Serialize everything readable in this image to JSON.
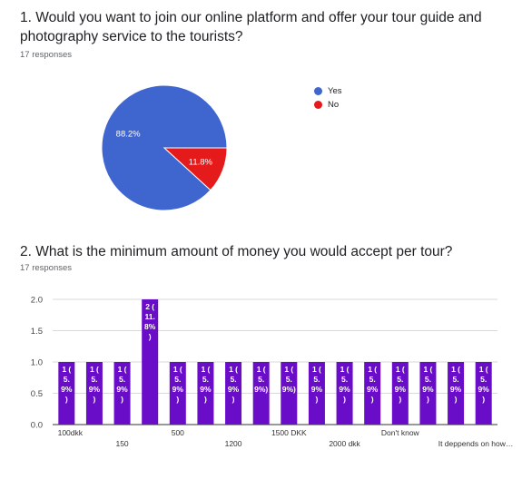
{
  "questions": [
    {
      "title": "1. Would you want to join our online platform and offer your tour guide and photography service to the tourists?",
      "responses": "17 responses"
    },
    {
      "title": "2.    What is the minimum amount of money you would accept per tour?",
      "responses": "17 responses"
    }
  ],
  "chart_data": [
    {
      "type": "pie",
      "legend_position": "right",
      "slices": [
        {
          "label": "Yes",
          "value": 88.2,
          "display": "88.2%",
          "color": "#3f65cf"
        },
        {
          "label": "No",
          "value": 11.8,
          "display": "11.8%",
          "color": "#e51b1b"
        }
      ]
    },
    {
      "type": "bar",
      "ylim": [
        0,
        2
      ],
      "yticks": [
        "0.0",
        "0.5",
        "1.0",
        "1.5",
        "2.0"
      ],
      "grid": true,
      "bar_color": "#6a0dc8",
      "categories": [
        "100dkk",
        "",
        "150",
        "",
        "500",
        "",
        "1200",
        "",
        "1500 DKK",
        "",
        "2000 dkk",
        "",
        "Don't know",
        "",
        "It deppends on how…",
        ""
      ],
      "values": [
        1,
        1,
        1,
        2,
        1,
        1,
        1,
        1,
        1,
        1,
        1,
        1,
        1,
        1,
        1,
        1
      ],
      "labels": [
        [
          "1 (",
          "5.",
          "9%",
          ")"
        ],
        [
          "1 (",
          "5.",
          "9%",
          ")"
        ],
        [
          "1 (",
          "5.",
          "9%",
          ")"
        ],
        [
          "2 (",
          "11.",
          "8%",
          ")"
        ],
        [
          "1 (",
          "5.",
          "9%",
          ")"
        ],
        [
          "1 (",
          "5.",
          "9%",
          ")"
        ],
        [
          "1 (",
          "5.",
          "9%",
          ")"
        ],
        [
          "1 (",
          "5.",
          "9%)"
        ],
        [
          "1 (",
          "5.",
          "9%)"
        ],
        [
          "1 (",
          "5.",
          "9%",
          ")"
        ],
        [
          "1 (",
          "5.",
          "9%",
          ")"
        ],
        [
          "1 (",
          "5.",
          "9%",
          ")"
        ],
        [
          "1 (",
          "5.",
          "9%",
          ")"
        ],
        [
          "1 (",
          "5.",
          "9%",
          ")"
        ],
        [
          "1 (",
          "5.",
          "9%",
          ")"
        ],
        [
          "1 (",
          "5.",
          "9%",
          ")"
        ]
      ]
    }
  ]
}
